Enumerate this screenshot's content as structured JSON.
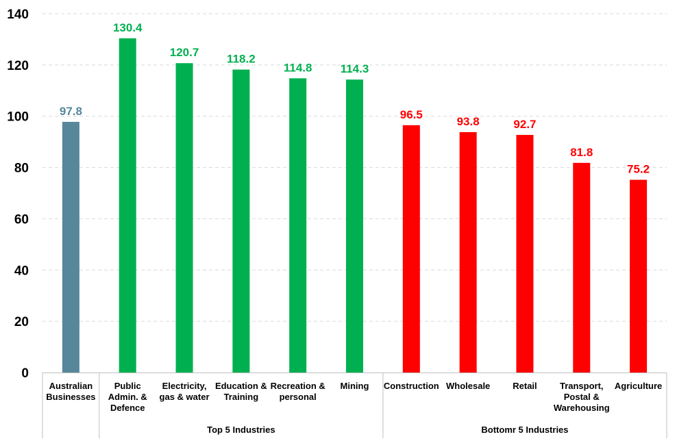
{
  "chart_data": {
    "type": "bar",
    "categories": [
      [
        "Australian",
        "Businesses"
      ],
      [
        "Public",
        "Admin. &",
        "Defence"
      ],
      [
        "Electricity,",
        "gas & water"
      ],
      [
        "Education &",
        "Training"
      ],
      [
        "Recreation &",
        "personal"
      ],
      [
        "Mining"
      ],
      [
        "Construction"
      ],
      [
        "Wholesale"
      ],
      [
        "Retail"
      ],
      [
        "Transport,",
        "Postal &",
        "Warehousing"
      ],
      [
        "Agriculture"
      ]
    ],
    "values": [
      97.8,
      130.4,
      120.7,
      118.2,
      114.8,
      114.3,
      96.5,
      93.8,
      92.7,
      81.8,
      75.2
    ],
    "value_labels": [
      "97.8",
      "130.4",
      "120.7",
      "118.2",
      "114.8",
      "114.3",
      "96.5",
      "93.8",
      "92.7",
      "81.8",
      "75.2"
    ],
    "colors": [
      "#56879b",
      "#00b050",
      "#00b050",
      "#00b050",
      "#00b050",
      "#00b050",
      "#ff0000",
      "#ff0000",
      "#ff0000",
      "#ff0000",
      "#ff0000"
    ],
    "groups": [
      {
        "label": "",
        "start": 0,
        "end": 0
      },
      {
        "label": "Top 5 Industries",
        "start": 1,
        "end": 5
      },
      {
        "label": "Bottomr 5 Industries",
        "start": 6,
        "end": 10
      }
    ],
    "yticks": [
      "0",
      "20",
      "40",
      "60",
      "80",
      "100",
      "120",
      "140"
    ],
    "ylim": [
      0,
      140
    ],
    "grid": true,
    "title": "",
    "xlabel": "",
    "ylabel": ""
  }
}
